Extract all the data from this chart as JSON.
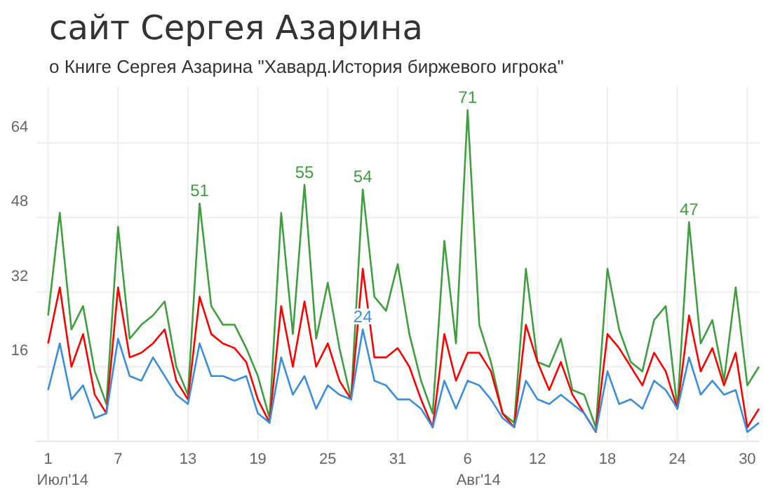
{
  "chart_data": {
    "type": "line",
    "title": "сайт Сергея Азарина",
    "subtitle": "о Книге Сергея Азарина \"Хавард.История биржевого игрока\"",
    "x": [
      "2014-07-01",
      "2014-07-02",
      "2014-07-03",
      "2014-07-04",
      "2014-07-05",
      "2014-07-06",
      "2014-07-07",
      "2014-07-08",
      "2014-07-09",
      "2014-07-10",
      "2014-07-11",
      "2014-07-12",
      "2014-07-13",
      "2014-07-14",
      "2014-07-15",
      "2014-07-16",
      "2014-07-17",
      "2014-07-18",
      "2014-07-19",
      "2014-07-20",
      "2014-07-21",
      "2014-07-22",
      "2014-07-23",
      "2014-07-24",
      "2014-07-25",
      "2014-07-26",
      "2014-07-27",
      "2014-07-28",
      "2014-07-29",
      "2014-07-30",
      "2014-07-31",
      "2014-08-01",
      "2014-08-02",
      "2014-08-03",
      "2014-08-04",
      "2014-08-05",
      "2014-08-06",
      "2014-08-07",
      "2014-08-08",
      "2014-08-09",
      "2014-08-10",
      "2014-08-11",
      "2014-08-12",
      "2014-08-13",
      "2014-08-14",
      "2014-08-15",
      "2014-08-16",
      "2014-08-17",
      "2014-08-18",
      "2014-08-19",
      "2014-08-20",
      "2014-08-21",
      "2014-08-22",
      "2014-08-23",
      "2014-08-24",
      "2014-08-25",
      "2014-08-26",
      "2014-08-27",
      "2014-08-28",
      "2014-08-29",
      "2014-08-30",
      "2014-08-31"
    ],
    "series": [
      {
        "color": "#3f9f3f",
        "values": [
          27,
          49,
          24,
          29,
          15,
          8,
          46,
          22,
          25,
          27,
          30,
          16,
          10,
          51,
          29,
          25,
          25,
          20,
          14,
          5,
          49,
          23,
          55,
          22,
          34,
          20,
          9,
          54,
          31,
          28,
          38,
          23,
          13,
          6,
          43,
          21,
          71,
          25,
          17,
          6,
          4,
          37,
          17,
          16,
          22,
          11,
          10,
          3,
          37,
          24,
          17,
          15,
          26,
          29,
          7,
          47,
          21,
          26,
          13,
          33,
          12,
          16
        ],
        "value_labels": [
          null,
          null,
          null,
          null,
          null,
          null,
          null,
          null,
          null,
          null,
          null,
          null,
          null,
          "51",
          null,
          null,
          null,
          null,
          null,
          null,
          null,
          null,
          "55",
          null,
          null,
          null,
          null,
          "54",
          null,
          null,
          null,
          null,
          null,
          null,
          null,
          null,
          "71",
          null,
          null,
          null,
          null,
          null,
          null,
          null,
          null,
          null,
          null,
          null,
          null,
          null,
          null,
          null,
          null,
          null,
          null,
          "47",
          null,
          null,
          null,
          null,
          null,
          null
        ]
      },
      {
        "color": "#ff0000",
        "values": [
          21,
          33,
          16,
          23,
          10,
          6,
          33,
          18,
          19,
          21,
          24,
          13,
          9,
          31,
          23,
          21,
          20,
          17,
          9,
          4,
          29,
          16,
          30,
          16,
          21,
          13,
          9,
          37,
          18,
          18,
          20,
          16,
          9,
          3,
          23,
          13,
          19,
          19,
          15,
          6,
          3,
          25,
          17,
          11,
          17,
          10,
          6,
          2,
          23,
          20,
          16,
          12,
          19,
          15,
          7,
          27,
          15,
          20,
          12,
          19,
          3,
          7
        ]
      },
      {
        "color": "#3a8ee0",
        "values": [
          11,
          21,
          9,
          12,
          5,
          6,
          22,
          14,
          13,
          18,
          14,
          10,
          8,
          21,
          14,
          14,
          13,
          14,
          6,
          4,
          18,
          10,
          14,
          7,
          12,
          10,
          9,
          24,
          13,
          12,
          9,
          9,
          7,
          3,
          13,
          7,
          13,
          12,
          9,
          5,
          3,
          13,
          9,
          8,
          10,
          8,
          6,
          2,
          15,
          8,
          9,
          7,
          13,
          11,
          7,
          18,
          10,
          13,
          10,
          11,
          2,
          4
        ],
        "value_labels": [
          null,
          null,
          null,
          null,
          null,
          null,
          null,
          null,
          null,
          null,
          null,
          null,
          null,
          null,
          null,
          null,
          null,
          null,
          null,
          null,
          null,
          null,
          null,
          null,
          null,
          null,
          null,
          "24",
          null,
          null,
          null,
          null,
          null,
          null,
          null,
          null,
          null,
          null,
          null,
          null,
          null,
          null,
          null,
          null,
          null,
          null,
          null,
          null,
          null,
          null,
          null,
          null,
          null,
          null,
          null,
          null,
          null,
          null,
          null,
          null,
          null,
          null
        ]
      }
    ],
    "xlim": [
      "2014-06-30",
      "2014-08-31"
    ],
    "xticks": [
      {
        "value": "2014-07-01",
        "label": "1\nИюл'14"
      },
      {
        "value": "2014-07-07",
        "label": "7"
      },
      {
        "value": "2014-07-13",
        "label": "13"
      },
      {
        "value": "2014-07-19",
        "label": "19"
      },
      {
        "value": "2014-07-25",
        "label": "25"
      },
      {
        "value": "2014-07-31",
        "label": "31"
      },
      {
        "value": "2014-08-06",
        "label": "6\nАвг'14"
      },
      {
        "value": "2014-08-12",
        "label": "12"
      },
      {
        "value": "2014-08-18",
        "label": "18"
      },
      {
        "value": "2014-08-24",
        "label": "24"
      },
      {
        "value": "2014-08-30",
        "label": "30"
      }
    ],
    "ylim": [
      0,
      76
    ],
    "yticks": [
      16,
      32,
      48,
      64
    ],
    "grid": true,
    "marker": "none",
    "line_style": "solid"
  }
}
